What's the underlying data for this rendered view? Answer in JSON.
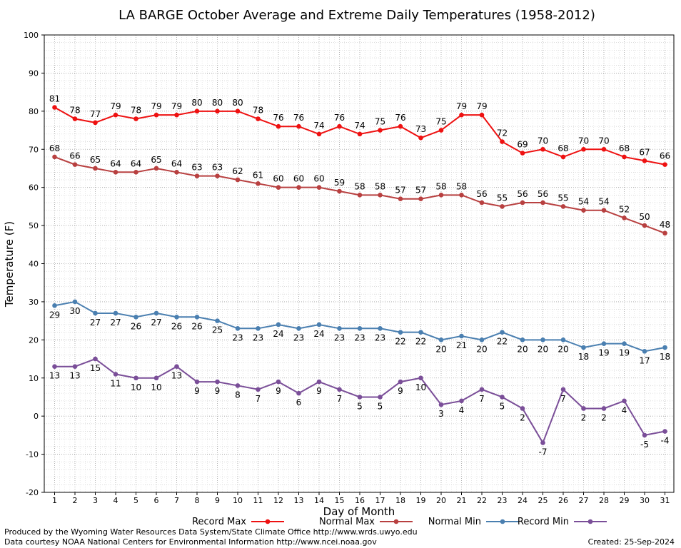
{
  "chart_data": {
    "type": "line",
    "title": "LA BARGE October Average and Extreme Daily Temperatures (1958-2012)",
    "xlabel": "Day of Month",
    "ylabel": "Temperature (F)",
    "ylim": [
      -20,
      100
    ],
    "yticks": [
      -20,
      -10,
      0,
      10,
      20,
      30,
      40,
      50,
      60,
      70,
      80,
      90,
      100
    ],
    "x": [
      1,
      2,
      3,
      4,
      5,
      6,
      7,
      8,
      9,
      10,
      11,
      12,
      13,
      14,
      15,
      16,
      17,
      18,
      19,
      20,
      21,
      22,
      23,
      24,
      25,
      26,
      27,
      28,
      29,
      30,
      31
    ],
    "grid": true,
    "legend_position": "bottom",
    "series": [
      {
        "name": "Record Max",
        "color": "#ee1111",
        "label_pos": "above",
        "values": [
          81,
          78,
          77,
          79,
          78,
          79,
          79,
          80,
          80,
          80,
          78,
          76,
          76,
          74,
          76,
          74,
          75,
          76,
          73,
          75,
          79,
          79,
          72,
          69,
          70,
          68,
          70,
          70,
          68,
          67,
          66
        ]
      },
      {
        "name": "Normal Max",
        "color": "#b84040",
        "label_pos": "above",
        "values": [
          68,
          66,
          65,
          64,
          64,
          65,
          64,
          63,
          63,
          62,
          61,
          60,
          60,
          60,
          59,
          58,
          58,
          57,
          57,
          58,
          58,
          56,
          55,
          56,
          56,
          55,
          54,
          54,
          52,
          50,
          48
        ]
      },
      {
        "name": "Normal Min",
        "color": "#4a7fb0",
        "label_pos": "below",
        "values": [
          29,
          30,
          27,
          27,
          26,
          27,
          26,
          26,
          25,
          23,
          23,
          24,
          23,
          24,
          23,
          23,
          23,
          22,
          22,
          20,
          21,
          20,
          22,
          20,
          20,
          20,
          18,
          19,
          19,
          17,
          18
        ]
      },
      {
        "name": "Record Min",
        "color": "#7a4e98",
        "label_pos": "below",
        "values": [
          13,
          13,
          15,
          11,
          10,
          10,
          13,
          9,
          9,
          8,
          7,
          9,
          6,
          9,
          7,
          5,
          5,
          9,
          10,
          3,
          4,
          7,
          5,
          2,
          -7,
          7,
          2,
          2,
          4,
          -5,
          -4
        ]
      }
    ]
  },
  "footer": {
    "line1": "Produced by the Wyoming Water Resources Data System/State Climate Office http://www.wrds.uwyo.edu",
    "line2": "Data courtesy NOAA National Centers for Environmental Information http://www.ncei.noaa.gov",
    "created": "Created:  25-Sep-2024"
  }
}
